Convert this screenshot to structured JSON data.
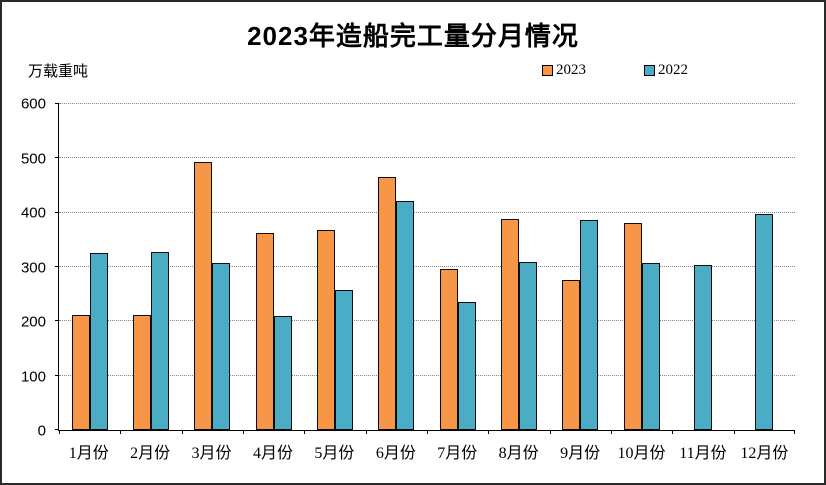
{
  "page": {
    "background": "#ffffff",
    "frame_color": "#2a2a2a"
  },
  "title": "2023年造船完工量分月情况",
  "unit_label": "万载重吨",
  "chart_data": {
    "type": "bar",
    "title": "2023年造船完工量分月情况",
    "ylabel": "万载重吨",
    "categories": [
      "1月份",
      "2月份",
      "3月份",
      "4月份",
      "5月份",
      "6月份",
      "7月份",
      "8月份",
      "9月份",
      "10月份",
      "11月份",
      "12月份"
    ],
    "series": [
      {
        "name": "2023",
        "color": "#F79646",
        "values": [
          212,
          212,
          494,
          362,
          368,
          465,
          296,
          389,
          276,
          381,
          null,
          null
        ]
      },
      {
        "name": "2022",
        "color": "#4BACC6",
        "values": [
          325,
          327,
          308,
          210,
          257,
          421,
          236,
          310,
          386,
          308,
          304,
          397
        ]
      }
    ],
    "ylim": [
      0,
      600
    ],
    "yticks": [
      0,
      100,
      200,
      300,
      400,
      500,
      600
    ],
    "grid": "horizontal-dotted",
    "gridline_color": "#888888",
    "bar_border_color": "#0d0d0d",
    "legend_position": "top-right"
  }
}
